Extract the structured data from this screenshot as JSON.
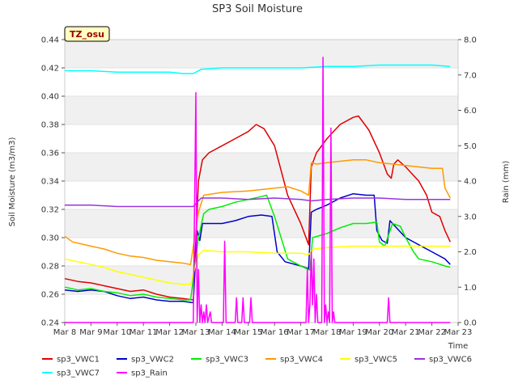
{
  "chart_data": {
    "type": "line",
    "title": "SP3 Soil Moisture",
    "ylabel": "Soil Moisture (m3/m3)",
    "y2label": "Rain (mm)",
    "xlabel": "Time",
    "site_badge": "TZ_osu",
    "x_start": "Mar 8",
    "x_end": "Mar 23",
    "x_ticks": [
      "Mar 8",
      "Mar 9",
      "Mar 10",
      "Mar 11",
      "Mar 12",
      "Mar 13",
      "Mar 14",
      "Mar 15",
      "Mar 16",
      "Mar 17",
      "Mar 18",
      "Mar 19",
      "Mar 20",
      "Mar 21",
      "Mar 22",
      "Mar 23"
    ],
    "ylim": [
      0.24,
      0.44
    ],
    "y_ticks": [
      "0.24",
      "0.26",
      "0.28",
      "0.30",
      "0.32",
      "0.34",
      "0.36",
      "0.38",
      "0.40",
      "0.42",
      "0.44"
    ],
    "y2lim": [
      0.0,
      8.0
    ],
    "y2_ticks": [
      "0.0",
      "1.0",
      "2.0",
      "3.0",
      "4.0",
      "5.0",
      "6.0",
      "7.0",
      "8.0"
    ],
    "grid": "horizontal bands",
    "legend_position": "bottom",
    "series": [
      {
        "name": "sp3_VWC1",
        "axis": "left",
        "color": "#e00000",
        "points": [
          [
            0,
            0.271
          ],
          [
            0.5,
            0.269
          ],
          [
            1,
            0.268
          ],
          [
            1.5,
            0.266
          ],
          [
            2,
            0.264
          ],
          [
            2.5,
            0.262
          ],
          [
            3,
            0.263
          ],
          [
            3.5,
            0.26
          ],
          [
            4,
            0.258
          ],
          [
            4.5,
            0.257
          ],
          [
            4.9,
            0.256
          ],
          [
            5.1,
            0.34
          ],
          [
            5.25,
            0.355
          ],
          [
            5.5,
            0.36
          ],
          [
            6,
            0.365
          ],
          [
            6.5,
            0.37
          ],
          [
            7,
            0.375
          ],
          [
            7.3,
            0.38
          ],
          [
            7.6,
            0.377
          ],
          [
            8,
            0.365
          ],
          [
            8.5,
            0.33
          ],
          [
            9,
            0.31
          ],
          [
            9.3,
            0.295
          ],
          [
            9.4,
            0.35
          ],
          [
            9.6,
            0.36
          ],
          [
            10,
            0.37
          ],
          [
            10.5,
            0.38
          ],
          [
            11,
            0.385
          ],
          [
            11.2,
            0.386
          ],
          [
            11.6,
            0.376
          ],
          [
            12,
            0.36
          ],
          [
            12.3,
            0.345
          ],
          [
            12.45,
            0.342
          ],
          [
            12.55,
            0.352
          ],
          [
            12.7,
            0.355
          ],
          [
            13,
            0.35
          ],
          [
            13.5,
            0.34
          ],
          [
            13.8,
            0.33
          ],
          [
            14,
            0.318
          ],
          [
            14.3,
            0.315
          ],
          [
            14.5,
            0.305
          ],
          [
            14.7,
            0.297
          ]
        ]
      },
      {
        "name": "sp3_VWC2",
        "axis": "left",
        "color": "#0000cc",
        "points": [
          [
            0,
            0.263
          ],
          [
            0.5,
            0.262
          ],
          [
            1,
            0.263
          ],
          [
            1.5,
            0.262
          ],
          [
            2,
            0.259
          ],
          [
            2.5,
            0.257
          ],
          [
            3,
            0.258
          ],
          [
            3.5,
            0.256
          ],
          [
            4,
            0.255
          ],
          [
            4.5,
            0.255
          ],
          [
            4.9,
            0.254
          ],
          [
            5.05,
            0.305
          ],
          [
            5.15,
            0.298
          ],
          [
            5.25,
            0.31
          ],
          [
            5.5,
            0.31
          ],
          [
            6,
            0.31
          ],
          [
            6.5,
            0.312
          ],
          [
            7,
            0.315
          ],
          [
            7.5,
            0.316
          ],
          [
            7.9,
            0.315
          ],
          [
            8.1,
            0.29
          ],
          [
            8.4,
            0.283
          ],
          [
            9,
            0.28
          ],
          [
            9.3,
            0.278
          ],
          [
            9.4,
            0.318
          ],
          [
            9.6,
            0.32
          ],
          [
            10,
            0.323
          ],
          [
            10.5,
            0.328
          ],
          [
            11,
            0.331
          ],
          [
            11.5,
            0.33
          ],
          [
            11.8,
            0.33
          ],
          [
            11.9,
            0.305
          ],
          [
            12.1,
            0.298
          ],
          [
            12.3,
            0.296
          ],
          [
            12.4,
            0.312
          ],
          [
            12.6,
            0.308
          ],
          [
            13,
            0.3
          ],
          [
            13.5,
            0.295
          ],
          [
            14,
            0.29
          ],
          [
            14.5,
            0.285
          ],
          [
            14.7,
            0.281
          ]
        ]
      },
      {
        "name": "sp3_VWC3",
        "axis": "left",
        "color": "#00ee00",
        "points": [
          [
            0,
            0.265
          ],
          [
            0.5,
            0.263
          ],
          [
            1,
            0.264
          ],
          [
            1.5,
            0.262
          ],
          [
            2,
            0.261
          ],
          [
            2.5,
            0.259
          ],
          [
            3,
            0.26
          ],
          [
            3.5,
            0.258
          ],
          [
            4,
            0.257
          ],
          [
            4.5,
            0.256
          ],
          [
            4.8,
            0.256
          ],
          [
            5.1,
            0.3
          ],
          [
            5.3,
            0.317
          ],
          [
            5.5,
            0.32
          ],
          [
            6,
            0.322
          ],
          [
            6.5,
            0.325
          ],
          [
            7,
            0.327
          ],
          [
            7.5,
            0.329
          ],
          [
            7.7,
            0.33
          ],
          [
            8,
            0.315
          ],
          [
            8.5,
            0.285
          ],
          [
            9,
            0.28
          ],
          [
            9.35,
            0.277
          ],
          [
            9.45,
            0.3
          ],
          [
            10,
            0.303
          ],
          [
            10.5,
            0.307
          ],
          [
            11,
            0.31
          ],
          [
            11.5,
            0.31
          ],
          [
            11.9,
            0.311
          ],
          [
            12,
            0.297
          ],
          [
            12.2,
            0.294
          ],
          [
            12.5,
            0.31
          ],
          [
            12.8,
            0.308
          ],
          [
            13,
            0.3
          ],
          [
            13.3,
            0.29
          ],
          [
            13.5,
            0.285
          ],
          [
            14,
            0.283
          ],
          [
            14.5,
            0.28
          ],
          [
            14.7,
            0.279
          ]
        ]
      },
      {
        "name": "sp3_VWC4",
        "axis": "left",
        "color": "#ff9900",
        "points": [
          [
            0,
            0.301
          ],
          [
            0.3,
            0.297
          ],
          [
            1,
            0.294
          ],
          [
            1.5,
            0.292
          ],
          [
            2,
            0.289
          ],
          [
            2.5,
            0.287
          ],
          [
            3,
            0.286
          ],
          [
            3.5,
            0.284
          ],
          [
            4,
            0.283
          ],
          [
            4.5,
            0.282
          ],
          [
            4.8,
            0.281
          ],
          [
            5.1,
            0.318
          ],
          [
            5.3,
            0.33
          ],
          [
            6,
            0.332
          ],
          [
            7,
            0.333
          ],
          [
            7.5,
            0.334
          ],
          [
            8,
            0.335
          ],
          [
            8.5,
            0.336
          ],
          [
            9,
            0.333
          ],
          [
            9.3,
            0.33
          ],
          [
            9.4,
            0.353
          ],
          [
            9.6,
            0.352
          ],
          [
            10,
            0.353
          ],
          [
            10.5,
            0.354
          ],
          [
            11,
            0.355
          ],
          [
            11.5,
            0.355
          ],
          [
            12,
            0.353
          ],
          [
            12.5,
            0.352
          ],
          [
            13,
            0.351
          ],
          [
            13.5,
            0.35
          ],
          [
            14,
            0.349
          ],
          [
            14.4,
            0.349
          ],
          [
            14.5,
            0.335
          ],
          [
            14.7,
            0.328
          ]
        ]
      },
      {
        "name": "sp3_VWC5",
        "axis": "left",
        "color": "#ffff00",
        "points": [
          [
            0,
            0.285
          ],
          [
            0.5,
            0.283
          ],
          [
            1,
            0.281
          ],
          [
            1.5,
            0.279
          ],
          [
            2,
            0.276
          ],
          [
            2.5,
            0.274
          ],
          [
            3,
            0.272
          ],
          [
            3.5,
            0.27
          ],
          [
            4,
            0.268
          ],
          [
            4.5,
            0.267
          ],
          [
            4.8,
            0.267
          ],
          [
            5.1,
            0.288
          ],
          [
            5.3,
            0.291
          ],
          [
            6,
            0.29
          ],
          [
            7,
            0.29
          ],
          [
            8,
            0.289
          ],
          [
            9,
            0.289
          ],
          [
            9.3,
            0.288
          ],
          [
            9.5,
            0.292
          ],
          [
            10,
            0.293
          ],
          [
            11,
            0.294
          ],
          [
            12,
            0.294
          ],
          [
            13,
            0.294
          ],
          [
            14,
            0.294
          ],
          [
            14.7,
            0.294
          ]
        ]
      },
      {
        "name": "sp3_VWC6",
        "axis": "left",
        "color": "#9933dd",
        "points": [
          [
            0,
            0.323
          ],
          [
            1,
            0.323
          ],
          [
            2,
            0.322
          ],
          [
            3,
            0.322
          ],
          [
            4,
            0.322
          ],
          [
            4.9,
            0.322
          ],
          [
            5.2,
            0.328
          ],
          [
            6,
            0.328
          ],
          [
            7,
            0.327
          ],
          [
            8,
            0.328
          ],
          [
            9,
            0.327
          ],
          [
            9.4,
            0.326
          ],
          [
            10,
            0.327
          ],
          [
            11,
            0.328
          ],
          [
            12,
            0.328
          ],
          [
            13,
            0.327
          ],
          [
            14,
            0.327
          ],
          [
            14.7,
            0.327
          ]
        ]
      },
      {
        "name": "sp3_VWC7",
        "axis": "left",
        "color": "#00ffff",
        "points": [
          [
            0,
            0.418
          ],
          [
            1,
            0.418
          ],
          [
            2,
            0.417
          ],
          [
            3,
            0.417
          ],
          [
            4,
            0.417
          ],
          [
            4.5,
            0.416
          ],
          [
            4.9,
            0.416
          ],
          [
            5.2,
            0.419
          ],
          [
            6,
            0.42
          ],
          [
            7,
            0.42
          ],
          [
            8,
            0.42
          ],
          [
            9,
            0.42
          ],
          [
            10,
            0.421
          ],
          [
            11,
            0.421
          ],
          [
            12,
            0.422
          ],
          [
            13,
            0.422
          ],
          [
            14,
            0.422
          ],
          [
            14.7,
            0.421
          ]
        ]
      },
      {
        "name": "sp3_Rain",
        "axis": "right",
        "color": "#ff00ff",
        "points": [
          [
            0,
            0
          ],
          [
            4.9,
            0
          ],
          [
            5.0,
            6.5
          ],
          [
            5.05,
            0
          ],
          [
            5.1,
            1.5
          ],
          [
            5.15,
            0
          ],
          [
            5.2,
            0.5
          ],
          [
            5.25,
            0
          ],
          [
            5.3,
            0.3
          ],
          [
            5.35,
            0
          ],
          [
            5.4,
            0.5
          ],
          [
            5.45,
            0
          ],
          [
            5.55,
            0.3
          ],
          [
            5.6,
            0
          ],
          [
            6.05,
            0
          ],
          [
            6.1,
            2.3
          ],
          [
            6.15,
            0
          ],
          [
            6.5,
            0
          ],
          [
            6.55,
            0.7
          ],
          [
            6.6,
            0
          ],
          [
            6.75,
            0
          ],
          [
            6.8,
            0.7
          ],
          [
            6.85,
            0
          ],
          [
            7.05,
            0
          ],
          [
            7.1,
            0.7
          ],
          [
            7.15,
            0
          ],
          [
            9.2,
            0
          ],
          [
            9.25,
            1.5
          ],
          [
            9.3,
            0
          ],
          [
            9.35,
            0.5
          ],
          [
            9.4,
            2.0
          ],
          [
            9.45,
            0.5
          ],
          [
            9.5,
            1.8
          ],
          [
            9.55,
            0
          ],
          [
            9.6,
            0.8
          ],
          [
            9.65,
            0
          ],
          [
            9.8,
            0
          ],
          [
            9.85,
            7.5
          ],
          [
            9.9,
            0
          ],
          [
            9.95,
            0.5
          ],
          [
            10,
            0
          ],
          [
            10.05,
            0.3
          ],
          [
            10.1,
            0
          ],
          [
            10.15,
            5.5
          ],
          [
            10.2,
            0
          ],
          [
            10.25,
            0.3
          ],
          [
            10.3,
            0
          ],
          [
            12.3,
            0
          ],
          [
            12.35,
            0.7
          ],
          [
            12.4,
            0
          ],
          [
            14.7,
            0
          ]
        ]
      }
    ]
  }
}
